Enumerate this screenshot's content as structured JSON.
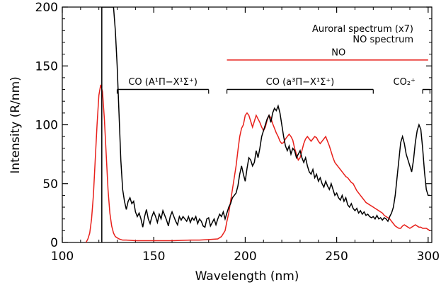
{
  "chart_data": {
    "type": "line",
    "title": "",
    "xlabel": "Wavelength (nm)",
    "ylabel": "Intensity (R/nm)",
    "xlim": [
      100,
      302
    ],
    "ylim": [
      0,
      200
    ],
    "xticks": [
      100,
      150,
      200,
      250,
      300
    ],
    "yticks": [
      0,
      50,
      100,
      150,
      200
    ],
    "grid": false,
    "legend": {
      "placement": "top-right",
      "entries": [
        {
          "label": "Auroral spectrum (x7)",
          "color": "#000000"
        },
        {
          "label": "NO spectrum",
          "color": "#e8201b"
        }
      ]
    },
    "colors": {
      "auroral": "#000000",
      "no": "#e8201b"
    },
    "series": [
      {
        "name": "Auroral spectrum (x7)",
        "color": "#000000",
        "points": [
          [
            121.6,
            0
          ],
          [
            121.6,
            200
          ],
          [
            128,
            200
          ],
          [
            129,
            180
          ],
          [
            130,
            150
          ],
          [
            131,
            110
          ],
          [
            132,
            70
          ],
          [
            133,
            45
          ],
          [
            134,
            35
          ],
          [
            135,
            28
          ],
          [
            136,
            35
          ],
          [
            137,
            38
          ],
          [
            138,
            33
          ],
          [
            139,
            35
          ],
          [
            140,
            26
          ],
          [
            141,
            22
          ],
          [
            142,
            25
          ],
          [
            143,
            20
          ],
          [
            144,
            13
          ],
          [
            145,
            22
          ],
          [
            146,
            28
          ],
          [
            147,
            20
          ],
          [
            148,
            16
          ],
          [
            149,
            22
          ],
          [
            150,
            26
          ],
          [
            151,
            22
          ],
          [
            152,
            17
          ],
          [
            153,
            24
          ],
          [
            154,
            20
          ],
          [
            155,
            27
          ],
          [
            156,
            23
          ],
          [
            157,
            19
          ],
          [
            158,
            14
          ],
          [
            159,
            22
          ],
          [
            160,
            26
          ],
          [
            161,
            22
          ],
          [
            162,
            18
          ],
          [
            163,
            15
          ],
          [
            164,
            22
          ],
          [
            165,
            19
          ],
          [
            166,
            22
          ],
          [
            167,
            20
          ],
          [
            168,
            18
          ],
          [
            169,
            22
          ],
          [
            170,
            17
          ],
          [
            171,
            21
          ],
          [
            172,
            19
          ],
          [
            173,
            22
          ],
          [
            174,
            16
          ],
          [
            175,
            20
          ],
          [
            176,
            18
          ],
          [
            177,
            14
          ],
          [
            178,
            13
          ],
          [
            179,
            20
          ],
          [
            180,
            21
          ],
          [
            181,
            14
          ],
          [
            182,
            17
          ],
          [
            183,
            20
          ],
          [
            184,
            15
          ],
          [
            185,
            20
          ],
          [
            186,
            24
          ],
          [
            187,
            22
          ],
          [
            188,
            26
          ],
          [
            189,
            20
          ],
          [
            190,
            25
          ],
          [
            191,
            30
          ],
          [
            192,
            33
          ],
          [
            193,
            38
          ],
          [
            194,
            40
          ],
          [
            195,
            42
          ],
          [
            196,
            48
          ],
          [
            197,
            58
          ],
          [
            198,
            65
          ],
          [
            199,
            58
          ],
          [
            200,
            52
          ],
          [
            201,
            63
          ],
          [
            202,
            72
          ],
          [
            203,
            70
          ],
          [
            204,
            65
          ],
          [
            205,
            68
          ],
          [
            206,
            78
          ],
          [
            207,
            72
          ],
          [
            208,
            80
          ],
          [
            209,
            90
          ],
          [
            210,
            95
          ],
          [
            211,
            100
          ],
          [
            212,
            105
          ],
          [
            213,
            108
          ],
          [
            214,
            102
          ],
          [
            215,
            110
          ],
          [
            216,
            114
          ],
          [
            217,
            112
          ],
          [
            218,
            116
          ],
          [
            219,
            110
          ],
          [
            220,
            100
          ],
          [
            221,
            90
          ],
          [
            222,
            82
          ],
          [
            223,
            78
          ],
          [
            224,
            82
          ],
          [
            225,
            75
          ],
          [
            226,
            80
          ],
          [
            227,
            78
          ],
          [
            228,
            72
          ],
          [
            229,
            75
          ],
          [
            230,
            78
          ],
          [
            231,
            72
          ],
          [
            232,
            68
          ],
          [
            233,
            72
          ],
          [
            234,
            65
          ],
          [
            235,
            60
          ],
          [
            236,
            58
          ],
          [
            237,
            62
          ],
          [
            238,
            55
          ],
          [
            239,
            58
          ],
          [
            240,
            52
          ],
          [
            241,
            55
          ],
          [
            242,
            50
          ],
          [
            243,
            47
          ],
          [
            244,
            52
          ],
          [
            245,
            48
          ],
          [
            246,
            45
          ],
          [
            247,
            50
          ],
          [
            248,
            45
          ],
          [
            249,
            40
          ],
          [
            250,
            42
          ],
          [
            251,
            38
          ],
          [
            252,
            36
          ],
          [
            253,
            40
          ],
          [
            254,
            35
          ],
          [
            255,
            38
          ],
          [
            256,
            32
          ],
          [
            257,
            30
          ],
          [
            258,
            33
          ],
          [
            259,
            29
          ],
          [
            260,
            27
          ],
          [
            261,
            29
          ],
          [
            262,
            25
          ],
          [
            263,
            27
          ],
          [
            264,
            24
          ],
          [
            265,
            26
          ],
          [
            266,
            23
          ],
          [
            267,
            24
          ],
          [
            268,
            22
          ],
          [
            269,
            21
          ],
          [
            270,
            22
          ],
          [
            271,
            20
          ],
          [
            272,
            23
          ],
          [
            273,
            20
          ],
          [
            274,
            21
          ],
          [
            275,
            19
          ],
          [
            276,
            21
          ],
          [
            277,
            20
          ],
          [
            278,
            18
          ],
          [
            279,
            22
          ],
          [
            280,
            25
          ],
          [
            281,
            30
          ],
          [
            282,
            40
          ],
          [
            283,
            55
          ],
          [
            284,
            70
          ],
          [
            285,
            85
          ],
          [
            286,
            90
          ],
          [
            287,
            84
          ],
          [
            288,
            75
          ],
          [
            289,
            70
          ],
          [
            290,
            65
          ],
          [
            291,
            60
          ],
          [
            292,
            70
          ],
          [
            293,
            85
          ],
          [
            294,
            95
          ],
          [
            295,
            100
          ],
          [
            296,
            96
          ],
          [
            297,
            80
          ],
          [
            298,
            60
          ],
          [
            299,
            45
          ],
          [
            300,
            40
          ],
          [
            301,
            40
          ]
        ]
      },
      {
        "name": "NO spectrum",
        "color": "#e8201b",
        "points": [
          [
            113,
            0
          ],
          [
            114,
            3
          ],
          [
            115,
            8
          ],
          [
            116,
            20
          ],
          [
            117,
            40
          ],
          [
            118,
            70
          ],
          [
            119,
            100
          ],
          [
            120,
            125
          ],
          [
            121,
            134
          ],
          [
            122,
            128
          ],
          [
            123,
            105
          ],
          [
            124,
            75
          ],
          [
            125,
            45
          ],
          [
            126,
            25
          ],
          [
            127,
            14
          ],
          [
            128,
            8
          ],
          [
            129,
            5
          ],
          [
            130,
            4
          ],
          [
            131,
            3
          ],
          [
            133,
            2
          ],
          [
            135,
            2
          ],
          [
            140,
            1.5
          ],
          [
            150,
            1.5
          ],
          [
            160,
            1.5
          ],
          [
            170,
            2
          ],
          [
            175,
            2
          ],
          [
            180,
            2.5
          ],
          [
            185,
            3
          ],
          [
            187,
            5
          ],
          [
            189,
            10
          ],
          [
            190,
            18
          ],
          [
            191,
            25
          ],
          [
            192,
            35
          ],
          [
            193,
            45
          ],
          [
            194,
            55
          ],
          [
            195,
            65
          ],
          [
            196,
            78
          ],
          [
            197,
            90
          ],
          [
            198,
            97
          ],
          [
            199,
            100
          ],
          [
            200,
            108
          ],
          [
            201,
            110
          ],
          [
            202,
            108
          ],
          [
            203,
            103
          ],
          [
            204,
            98
          ],
          [
            205,
            103
          ],
          [
            206,
            108
          ],
          [
            207,
            105
          ],
          [
            208,
            102
          ],
          [
            209,
            98
          ],
          [
            210,
            95
          ],
          [
            211,
            98
          ],
          [
            212,
            104
          ],
          [
            213,
            108
          ],
          [
            214,
            106
          ],
          [
            215,
            101
          ],
          [
            216,
            97
          ],
          [
            217,
            93
          ],
          [
            218,
            90
          ],
          [
            219,
            86
          ],
          [
            220,
            84
          ],
          [
            221,
            85
          ],
          [
            222,
            88
          ],
          [
            223,
            90
          ],
          [
            224,
            92
          ],
          [
            225,
            90
          ],
          [
            226,
            87
          ],
          [
            227,
            80
          ],
          [
            228,
            75
          ],
          [
            229,
            70
          ],
          [
            230,
            72
          ],
          [
            231,
            78
          ],
          [
            232,
            84
          ],
          [
            233,
            88
          ],
          [
            234,
            90
          ],
          [
            235,
            88
          ],
          [
            236,
            86
          ],
          [
            237,
            88
          ],
          [
            238,
            90
          ],
          [
            239,
            89
          ],
          [
            240,
            86
          ],
          [
            241,
            84
          ],
          [
            242,
            86
          ],
          [
            243,
            88
          ],
          [
            244,
            90
          ],
          [
            245,
            86
          ],
          [
            246,
            82
          ],
          [
            247,
            77
          ],
          [
            248,
            72
          ],
          [
            249,
            68
          ],
          [
            250,
            66
          ],
          [
            251,
            64
          ],
          [
            252,
            62
          ],
          [
            253,
            60
          ],
          [
            254,
            58
          ],
          [
            255,
            56
          ],
          [
            256,
            55
          ],
          [
            257,
            53
          ],
          [
            258,
            51
          ],
          [
            259,
            50
          ],
          [
            260,
            47
          ],
          [
            261,
            44
          ],
          [
            262,
            42
          ],
          [
            263,
            40
          ],
          [
            264,
            38
          ],
          [
            265,
            36
          ],
          [
            266,
            34
          ],
          [
            267,
            33
          ],
          [
            268,
            32
          ],
          [
            269,
            31
          ],
          [
            270,
            30
          ],
          [
            271,
            29
          ],
          [
            272,
            28
          ],
          [
            273,
            27
          ],
          [
            274,
            26
          ],
          [
            275,
            25
          ],
          [
            276,
            23
          ],
          [
            277,
            22
          ],
          [
            278,
            21
          ],
          [
            279,
            20
          ],
          [
            280,
            18
          ],
          [
            281,
            16
          ],
          [
            282,
            14
          ],
          [
            283,
            13
          ],
          [
            284,
            12
          ],
          [
            285,
            12
          ],
          [
            286,
            14
          ],
          [
            287,
            15
          ],
          [
            288,
            14
          ],
          [
            289,
            13
          ],
          [
            290,
            12
          ],
          [
            291,
            13
          ],
          [
            292,
            14
          ],
          [
            293,
            15
          ],
          [
            294,
            14
          ],
          [
            295,
            13
          ],
          [
            296,
            13
          ],
          [
            297,
            12
          ],
          [
            298,
            12
          ],
          [
            299,
            12
          ],
          [
            300,
            11
          ],
          [
            301,
            10
          ]
        ]
      }
    ],
    "annotations": [
      {
        "id": "no",
        "text": "NO",
        "color": "#e8201b",
        "x1": 190,
        "x2": 300,
        "y": 155,
        "tx": 251,
        "ty": 160
      },
      {
        "id": "co-a",
        "text": "CO (A¹Π−X¹Σ⁺)",
        "color": "#000000",
        "x1": 130,
        "x2": 180,
        "y": 130,
        "tx": 155,
        "ty": 135
      },
      {
        "id": "co-a3",
        "text": "CO (a³Π−X¹Σ⁺)",
        "color": "#000000",
        "x1": 190,
        "x2": 270,
        "y": 130,
        "tx": 230,
        "ty": 135
      },
      {
        "id": "co2",
        "text": "CO₂⁺",
        "color": "#000000",
        "x1": 297,
        "x2": 301,
        "y": 130,
        "tx": 287,
        "ty": 135
      }
    ]
  }
}
